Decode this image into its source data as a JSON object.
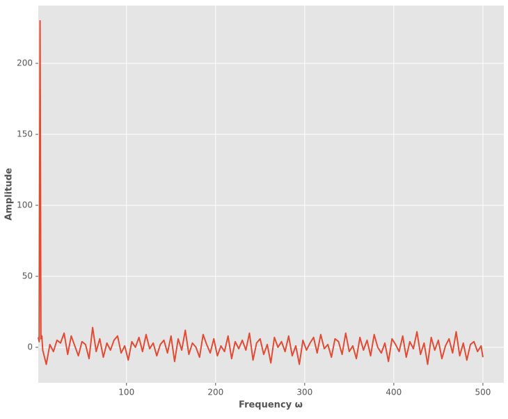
{
  "chart_data": {
    "type": "line",
    "xlabel": "Frequency ω",
    "ylabel": "Amplitude",
    "x": [
      1,
      2,
      3,
      4,
      5,
      6,
      10,
      14,
      18,
      22,
      26,
      30,
      34,
      38,
      42,
      46,
      50,
      54,
      58,
      62,
      66,
      70,
      74,
      78,
      82,
      86,
      90,
      94,
      98,
      102,
      106,
      110,
      114,
      118,
      122,
      126,
      130,
      134,
      138,
      142,
      146,
      150,
      154,
      158,
      162,
      166,
      170,
      174,
      178,
      182,
      186,
      190,
      194,
      198,
      202,
      206,
      210,
      214,
      218,
      222,
      226,
      230,
      234,
      238,
      242,
      246,
      250,
      254,
      258,
      262,
      266,
      270,
      274,
      278,
      282,
      286,
      290,
      294,
      298,
      302,
      306,
      310,
      314,
      318,
      322,
      326,
      330,
      334,
      338,
      342,
      346,
      350,
      354,
      358,
      362,
      366,
      370,
      374,
      378,
      382,
      386,
      390,
      394,
      398,
      402,
      406,
      410,
      414,
      418,
      422,
      426,
      430,
      434,
      438,
      442,
      446,
      450,
      454,
      458,
      462,
      466,
      470,
      474,
      478,
      482,
      486,
      490,
      494,
      498,
      500
    ],
    "series": [
      {
        "name": "Amplitude",
        "color": "#e24a33",
        "values": [
          7,
          4,
          230,
          6,
          8,
          -2,
          -12,
          2,
          -3,
          5,
          3,
          10,
          -5,
          8,
          1,
          -6,
          4,
          2,
          -8,
          14,
          -3,
          6,
          -7,
          3,
          -2,
          5,
          8,
          -4,
          1,
          -9,
          4,
          0,
          7,
          -3,
          9,
          -1,
          3,
          -6,
          2,
          5,
          -4,
          8,
          -10,
          6,
          -2,
          12,
          -5,
          3,
          0,
          -7,
          9,
          2,
          -4,
          6,
          -6,
          1,
          -3,
          8,
          -8,
          4,
          -1,
          5,
          -2,
          10,
          -9,
          3,
          6,
          -5,
          2,
          -11,
          7,
          0,
          4,
          -3,
          8,
          -6,
          1,
          -12,
          5,
          -2,
          3,
          7,
          -4,
          9,
          -1,
          2,
          -7,
          6,
          4,
          -5,
          10,
          -3,
          1,
          -8,
          7,
          -2,
          5,
          -6,
          9,
          0,
          -4,
          3,
          -10,
          6,
          2,
          -3,
          8,
          -7,
          4,
          -1,
          11,
          -5,
          3,
          -12,
          7,
          -2,
          5,
          -8,
          1,
          6,
          -4,
          11,
          -6,
          3,
          -9,
          2,
          4,
          -3,
          1,
          -7
        ]
      }
    ],
    "xlim": [
      1,
      523.5
    ],
    "ylim": [
      -25,
      240.7
    ],
    "xticks": [
      100,
      200,
      300,
      400,
      500
    ],
    "yticks": [
      0,
      50,
      100,
      150,
      200
    ],
    "grid": true
  }
}
